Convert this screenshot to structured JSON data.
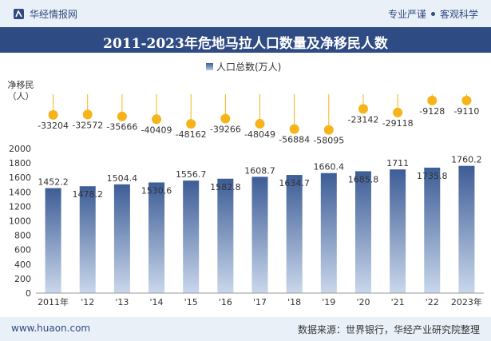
{
  "header": {
    "brand": "华经情报网",
    "tagline_left": "专业严谨",
    "tagline_right": "客观科学"
  },
  "chart_data": {
    "type": "bar",
    "title": "2011-2023年危地马拉人口数量及净移民人数",
    "categories": [
      "2011年",
      "'12",
      "'13",
      "'14",
      "'15",
      "'16",
      "'17",
      "'18",
      "'19",
      "'20",
      "'21",
      "'22",
      "2023年"
    ],
    "series": [
      {
        "name": "人口总数(万人)",
        "values": [
          1452.2,
          1478.2,
          1504.4,
          1530.6,
          1556.7,
          1582.8,
          1608.7,
          1634.7,
          1660.4,
          1685.8,
          1711,
          1735.8,
          1760.2
        ]
      }
    ],
    "net_migration": {
      "label": "净移民（人）",
      "values": [
        -33204,
        -32572,
        -35666,
        -40409,
        -48162,
        -39266,
        -48049,
        -56884,
        -58095,
        -23142,
        -29118,
        -9128,
        -9110
      ]
    },
    "yticks": [
      0,
      200,
      400,
      600,
      800,
      1000,
      1200,
      1400,
      1600,
      1800,
      2000
    ],
    "ylim": [
      0,
      2000
    ],
    "legend_position": "top-center",
    "colors": {
      "bar_top": "#3d5d96",
      "bar_bottom": "#c9d7eb",
      "dot": "#f6b31a",
      "stem": "#f6b31a"
    }
  },
  "footer": {
    "website": "www.huaon.com",
    "source": "数据来源：世界银行，华经产业研究院整理"
  }
}
